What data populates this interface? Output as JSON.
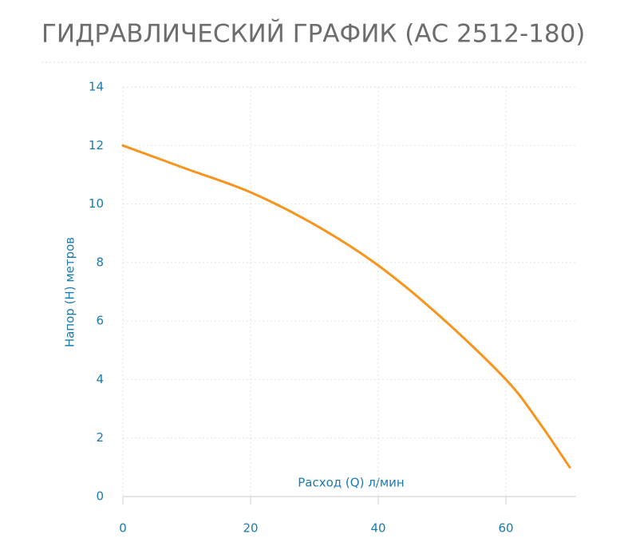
{
  "chart_data": {
    "type": "line",
    "title": "ГИДРАВЛИЧЕСКИЙ ГРАФИК (АС 2512-180)",
    "x_label": "Расход (Q) л/мин",
    "y_label": "Напор (H) метров",
    "x": [
      0,
      10,
      20,
      30,
      40,
      50,
      60,
      65,
      70
    ],
    "series": [
      {
        "color": "#f7941d",
        "values": [
          12,
          11.2,
          10.4,
          9.3,
          7.9,
          6.1,
          4,
          2.6,
          1
        ]
      }
    ],
    "xlim": [
      0,
      71
    ],
    "xticks": [
      0,
      20,
      40,
      60
    ],
    "ylim": [
      0,
      14
    ],
    "yticks": [
      0,
      2,
      4,
      6,
      8,
      10,
      12,
      14
    ],
    "grid": true
  }
}
